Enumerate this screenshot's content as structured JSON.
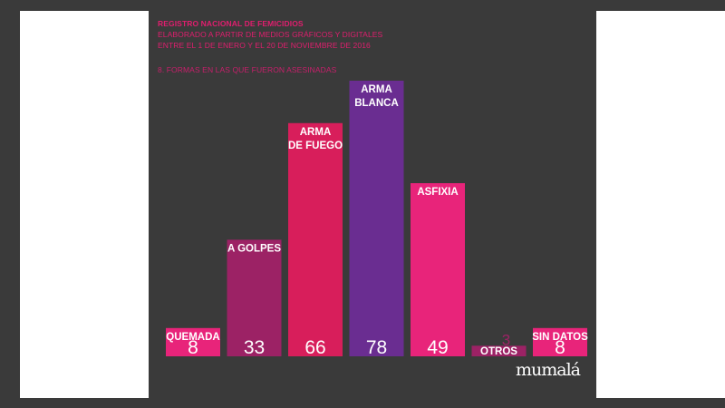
{
  "header": {
    "title": "REGISTRO NACIONAL DE FEMICIDIOS",
    "line1": "ELABORADO A PARTIR DE MEDIOS GRÁFICOS Y DIGITALES",
    "line2": "ENTRE EL 1 DE ENERO Y EL 20 DE NOVIEMBRE DE 2016",
    "subtitle": "8. FORMAS EN LAS QUE FUERON ASESINADAS"
  },
  "logo": "mumalá",
  "colors": {
    "background": "#3a3a3a",
    "pink": "#e8247a",
    "magenta": "#9c2265",
    "crimson": "#d81e5b",
    "purple": "#6a2d91",
    "white": "#ffffff"
  },
  "chart_data": {
    "type": "bar",
    "title": "8. FORMAS EN LAS QUE FUERON ASESINADAS",
    "categories": [
      "QUEMADA",
      "A GOLPES",
      "ARMA DE FUEGO",
      "ARMA BLANCA",
      "ASFIXIA",
      "OTROS",
      "SIN DATOS"
    ],
    "category_label_lines": [
      [
        "QUEMADA"
      ],
      [
        "A GOLPES"
      ],
      [
        "ARMA",
        "DE FUEGO"
      ],
      [
        "ARMA",
        "BLANCA"
      ],
      [
        "ASFIXIA"
      ],
      [
        "OTROS"
      ],
      [
        "SIN DATOS"
      ]
    ],
    "values": [
      8,
      33,
      66,
      78,
      49,
      3,
      8
    ],
    "bar_colors": [
      "#e8247a",
      "#9c2265",
      "#d81e5b",
      "#6a2d91",
      "#e8247a",
      "#9c2265",
      "#e8247a"
    ],
    "ylim": [
      0,
      78
    ],
    "grid": false,
    "legend": "none"
  }
}
